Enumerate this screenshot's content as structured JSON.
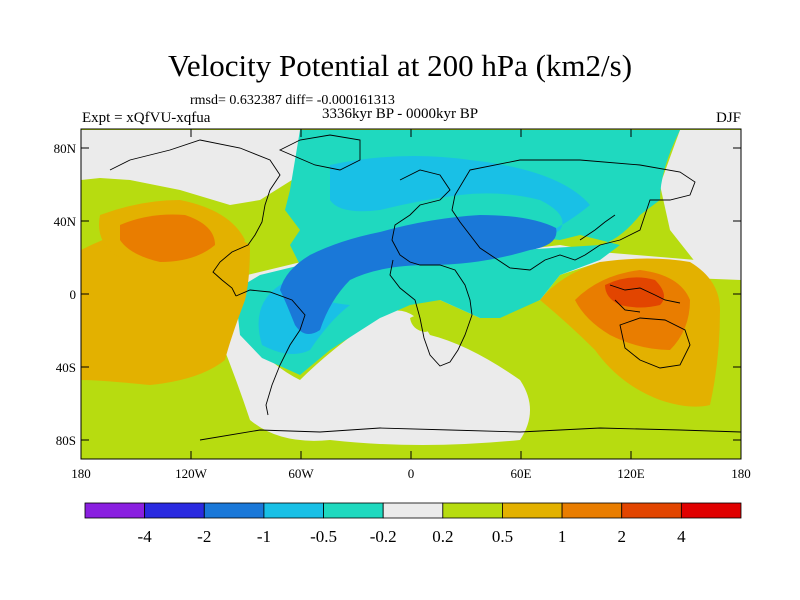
{
  "header": {
    "title": "Velocity Potential at 200 hPa (km2/s)",
    "stats": "rmsd= 0.632387 diff= -0.000161313",
    "experiment": "Expt = xQfVU-xqfua",
    "period": "3336kyr BP - 0000kyr BP",
    "season": "DJF"
  },
  "map": {
    "projection": "cylindrical-equidistant",
    "lon_range": [
      -180,
      180
    ],
    "lat_range": [
      -90,
      90
    ],
    "lat_ticks": [
      "80N",
      "40N",
      "0",
      "40S",
      "80S"
    ],
    "lon_ticks": [
      "180",
      "120W",
      "60W",
      "0",
      "60E",
      "120E",
      "180"
    ]
  },
  "colorbar": {
    "labels": [
      "-4",
      "-2",
      "-1",
      "-0.5",
      "-0.2",
      "0.2",
      "0.5",
      "1",
      "2",
      "4"
    ],
    "colors": [
      "#8a1fe0",
      "#2a2ae0",
      "#1a78d8",
      "#19c0e6",
      "#1fd9bf",
      "#ebebeb",
      "#b7dc10",
      "#e3b100",
      "#e97d00",
      "#e24500",
      "#e00000"
    ]
  }
}
